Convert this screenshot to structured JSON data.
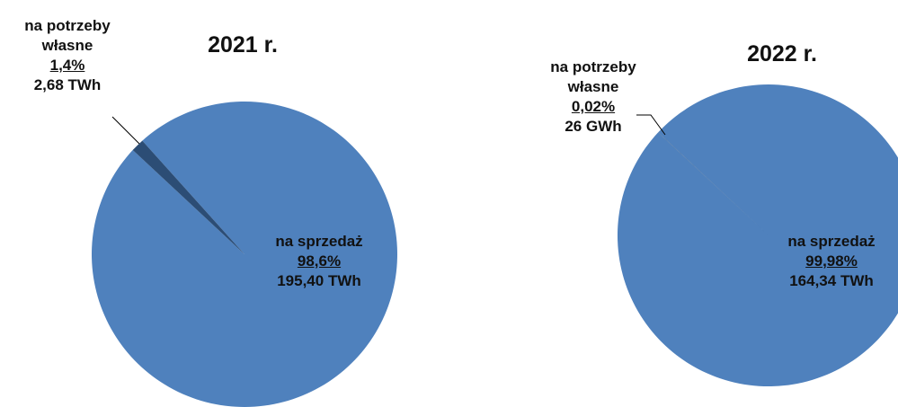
{
  "chart_data": [
    {
      "type": "pie",
      "title": "2021 r.",
      "categories": [
        "na potrzeby własne",
        "na sprzedaż"
      ],
      "values": [
        1.4,
        98.6
      ],
      "value_labels": [
        "1,4%",
        "98,6%"
      ],
      "amounts": [
        2.68,
        195.4
      ],
      "amount_labels": [
        "2,68 TWh",
        "195,40 TWh"
      ],
      "colors": [
        "#2c4d75",
        "#4f81bd"
      ]
    },
    {
      "type": "pie",
      "title": "2022 r.",
      "categories": [
        "na potrzeby własne",
        "na sprzedaż"
      ],
      "values": [
        0.02,
        99.98
      ],
      "value_labels": [
        "0,02%",
        "99,98%"
      ],
      "amounts": [
        0.026,
        164.34
      ],
      "amount_labels": [
        "26 GWh",
        "164,34 TWh"
      ],
      "colors": [
        "#2c4d75",
        "#4f81bd"
      ]
    }
  ]
}
